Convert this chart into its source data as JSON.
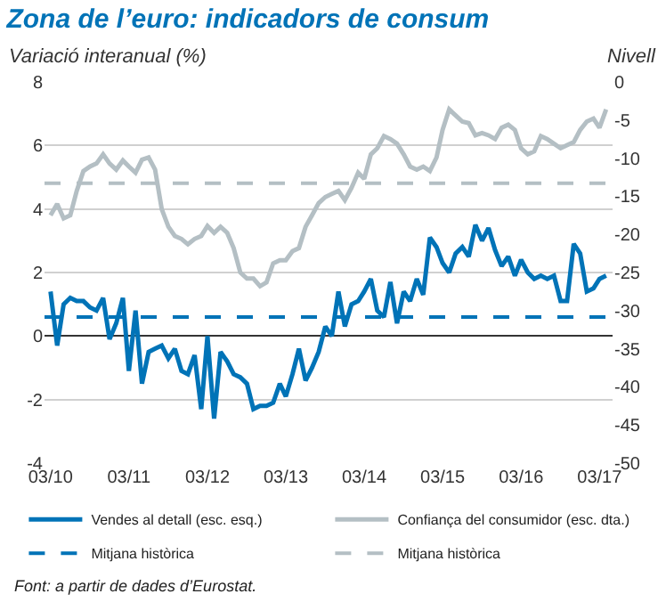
{
  "chart_data": {
    "type": "line",
    "title": "Zona de l’euro: indicadors de consum",
    "ylabel": "Variació interanual (%)",
    "y2label": "Nivell",
    "x": [
      "2010-03",
      "2010-04",
      "2010-05",
      "2010-06",
      "2010-07",
      "2010-08",
      "2010-09",
      "2010-10",
      "2010-11",
      "2010-12",
      "2011-01",
      "2011-02",
      "2011-03",
      "2011-04",
      "2011-05",
      "2011-06",
      "2011-07",
      "2011-08",
      "2011-09",
      "2011-10",
      "2011-11",
      "2011-12",
      "2012-01",
      "2012-02",
      "2012-03",
      "2012-04",
      "2012-05",
      "2012-06",
      "2012-07",
      "2012-08",
      "2012-09",
      "2012-10",
      "2012-11",
      "2012-12",
      "2013-01",
      "2013-02",
      "2013-03",
      "2013-04",
      "2013-05",
      "2013-06",
      "2013-07",
      "2013-08",
      "2013-09",
      "2013-10",
      "2013-11",
      "2013-12",
      "2014-01",
      "2014-02",
      "2014-03",
      "2014-04",
      "2014-05",
      "2014-06",
      "2014-07",
      "2014-08",
      "2014-09",
      "2014-10",
      "2014-11",
      "2014-12",
      "2015-01",
      "2015-02",
      "2015-03",
      "2015-04",
      "2015-05",
      "2015-06",
      "2015-07",
      "2015-08",
      "2015-09",
      "2015-10",
      "2015-11",
      "2015-12",
      "2016-01",
      "2016-02",
      "2016-03",
      "2016-04",
      "2016-05",
      "2016-06",
      "2016-07",
      "2016-08",
      "2016-09",
      "2016-10",
      "2016-11",
      "2016-12",
      "2017-01",
      "2017-02",
      "2017-03",
      "2017-04"
    ],
    "series": [
      {
        "name": "Vendes al detall (esc. esq.)",
        "color": "#0073b7",
        "values": [
          1.4,
          -0.3,
          1.0,
          1.2,
          1.1,
          1.1,
          0.9,
          0.8,
          1.2,
          -0.1,
          0.4,
          1.2,
          -1.1,
          0.8,
          -1.5,
          -0.5,
          -0.4,
          -0.3,
          -0.7,
          -0.4,
          -1.1,
          -1.2,
          -0.6,
          -2.3,
          0.0,
          -2.6,
          -0.5,
          -0.8,
          -1.2,
          -1.3,
          -1.5,
          -2.3,
          -2.2,
          -2.2,
          -2.1,
          -1.5,
          -1.9,
          -1.2,
          -0.4,
          -1.4,
          -1.0,
          -0.5,
          0.3,
          0.0,
          1.4,
          0.3,
          1.0,
          1.1,
          1.4,
          1.8,
          0.8,
          0.6,
          1.7,
          0.4,
          1.4,
          1.1,
          1.8,
          1.3,
          3.1,
          2.8,
          2.3,
          2.0,
          2.6,
          2.8,
          2.5,
          3.5,
          3.0,
          3.4,
          2.7,
          2.2,
          2.5,
          1.9,
          2.4,
          2.0,
          1.8,
          1.9,
          1.8,
          1.9,
          1.1,
          1.1,
          2.9,
          2.6,
          1.4,
          1.5,
          1.8,
          1.9
        ]
      },
      {
        "name": "Confiança del consumidor (esc. dta.)",
        "color": "#b4bfc4",
        "axis": "y2",
        "values": [
          -17.5,
          -16.0,
          -17.9,
          -17.5,
          -14.3,
          -11.7,
          -11.1,
          -10.7,
          -9.5,
          -10.7,
          -11.5,
          -10.3,
          -11.1,
          -11.9,
          -10.2,
          -9.9,
          -11.5,
          -16.7,
          -19.0,
          -20.2,
          -20.6,
          -21.3,
          -20.6,
          -20.2,
          -18.9,
          -19.8,
          -19.0,
          -19.8,
          -21.8,
          -25.0,
          -25.8,
          -25.8,
          -26.8,
          -26.3,
          -23.8,
          -23.4,
          -23.4,
          -22.2,
          -21.8,
          -19.0,
          -17.5,
          -15.9,
          -15.1,
          -14.7,
          -14.3,
          -15.5,
          -13.9,
          -11.9,
          -12.7,
          -9.5,
          -8.7,
          -7.1,
          -7.5,
          -8.1,
          -9.5,
          -11.1,
          -11.5,
          -11.1,
          -11.7,
          -9.9,
          -6.3,
          -3.6,
          -4.4,
          -5.2,
          -5.4,
          -7.0,
          -6.7,
          -7.0,
          -7.5,
          -6.0,
          -5.6,
          -6.3,
          -8.7,
          -9.5,
          -9.1,
          -7.1,
          -7.5,
          -8.1,
          -8.7,
          -8.3,
          -7.9,
          -6.3,
          -5.2,
          -4.8,
          -6.0,
          -3.6
        ]
      }
    ],
    "ref_lines": [
      {
        "axis": "y",
        "value": 0.6,
        "label": "Mitjana històrica",
        "color": "#0073b7",
        "line_style": "dashed"
      },
      {
        "axis": "y2",
        "value": -13.3,
        "label": "Mitjana històrica",
        "color": "#b4bfc4",
        "line_style": "dashed"
      }
    ],
    "xlim": [
      "2010-02",
      "2017-05"
    ],
    "xticks": [
      {
        "value": "2010-03",
        "label": "03/10"
      },
      {
        "value": "2011-03",
        "label": "03/11"
      },
      {
        "value": "2012-03",
        "label": "03/12"
      },
      {
        "value": "2013-03",
        "label": "03/13"
      },
      {
        "value": "2014-03",
        "label": "03/14"
      },
      {
        "value": "2015-03",
        "label": "03/15"
      },
      {
        "value": "2016-03",
        "label": "03/16"
      },
      {
        "value": "2017-03",
        "label": "03/17"
      }
    ],
    "ylim": [
      -4,
      8
    ],
    "yticks": [
      -4,
      -2,
      0,
      2,
      4,
      6,
      8
    ],
    "y2lim": [
      -50,
      0
    ],
    "y2ticks": [
      -50,
      -45,
      -40,
      -35,
      -30,
      -25,
      -20,
      -15,
      -10,
      -5,
      0
    ],
    "grid": "y",
    "legend": "bottom",
    "marker": "none",
    "line_style": "solid",
    "annotations": [
      "Font: a partir de dades d’Eurostat."
    ]
  }
}
